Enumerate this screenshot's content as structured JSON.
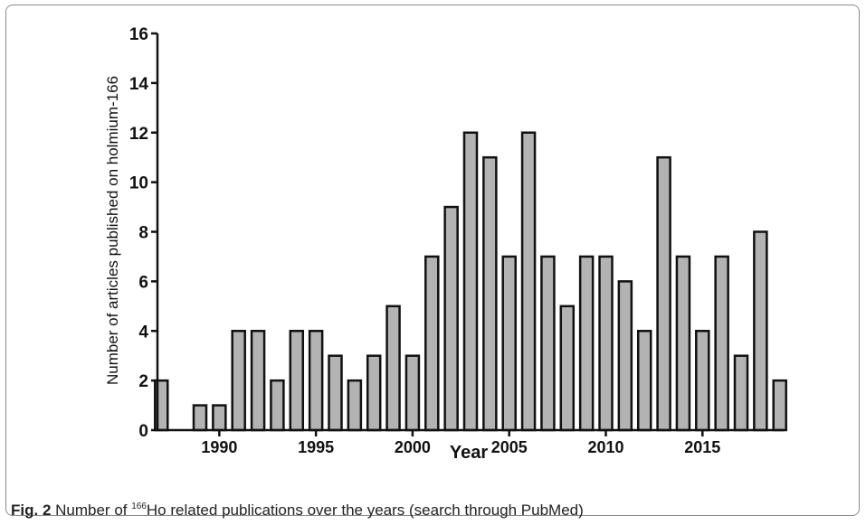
{
  "colors": {
    "bar_fill": "#b3b3b3",
    "bar_stroke": "#111111",
    "axis": "#111111",
    "frame": "#8a8a8a"
  },
  "caption": {
    "label": "Fig. 2",
    "text_before": " Number of ",
    "superscript": "166",
    "text_after": "Ho related publications over the years (search through PubMed)"
  },
  "chart_data": {
    "type": "bar",
    "xlabel": "Year",
    "ylabel": "Number of articles published on holmium-166",
    "ylim": [
      0,
      16
    ],
    "yticks": [
      0,
      2,
      4,
      6,
      8,
      10,
      12,
      14,
      16
    ],
    "xlim": [
      1986.8,
      2019.2
    ],
    "xticks": [
      1990,
      1995,
      2000,
      2005,
      2010,
      2015
    ],
    "grid": false,
    "legend": "none",
    "categories": [
      1987,
      1988,
      1989,
      1990,
      1991,
      1992,
      1993,
      1994,
      1995,
      1996,
      1997,
      1998,
      1999,
      2000,
      2001,
      2002,
      2003,
      2004,
      2005,
      2006,
      2007,
      2008,
      2009,
      2010,
      2011,
      2012,
      2013,
      2014,
      2015,
      2016,
      2017,
      2018,
      2019
    ],
    "values": [
      2,
      0,
      1,
      1,
      4,
      4,
      2,
      4,
      4,
      3,
      2,
      3,
      5,
      3,
      7,
      9,
      12,
      11,
      7,
      12,
      7,
      5,
      7,
      7,
      6,
      4,
      11,
      7,
      4,
      7,
      3,
      8,
      2
    ]
  }
}
